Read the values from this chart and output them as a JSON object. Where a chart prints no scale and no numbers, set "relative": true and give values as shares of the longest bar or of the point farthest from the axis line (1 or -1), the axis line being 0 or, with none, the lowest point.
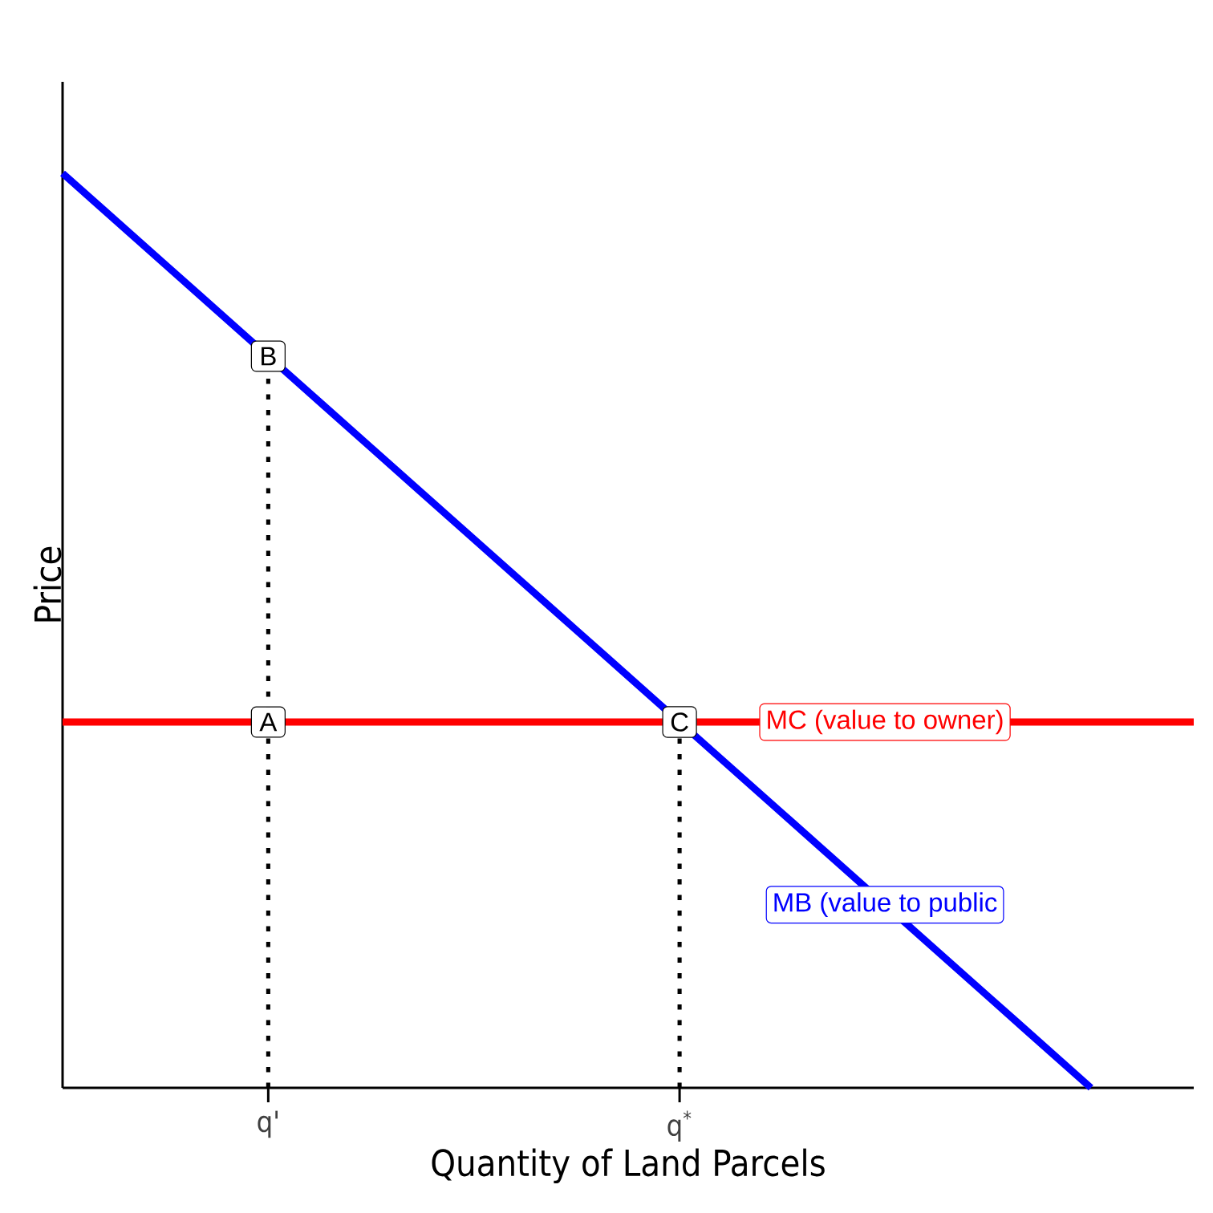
{
  "chart_data": {
    "type": "line",
    "relative": true,
    "xlabel": "Quantity of Land Parcels",
    "ylabel": "Price",
    "categories": [
      null,
      null,
      "q'",
      null,
      null,
      null,
      "q$^{*}$",
      null,
      null,
      null,
      null,
      null
    ],
    "series": [
      {
        "name": "MB (value to public",
        "color": "#0000ff",
        "values": [
          1,
          0.9,
          0.8,
          0.7,
          0.6,
          0.5,
          0.4,
          0.3,
          null,
          0.1,
          0,
          null
        ]
      }
    ],
    "ref_lines": [
      {
        "axis": "y",
        "value": 0.4,
        "label": "MC (value to owner)",
        "color": "#ff0000"
      },
      {
        "axis": "x",
        "value": "q'",
        "color": "#000000",
        "line_style": "dotted"
      },
      {
        "axis": "x",
        "value": "q$^{*}$",
        "color": "#000000",
        "line_style": "dotted"
      }
    ],
    "annotations": [
      {
        "text": "A",
        "x": "q'",
        "y": 0.4
      },
      {
        "text": "B",
        "x": "q'",
        "y": 0.8
      },
      {
        "text": "C",
        "x": "q$^{*}$",
        "y": 0.4
      }
    ]
  }
}
